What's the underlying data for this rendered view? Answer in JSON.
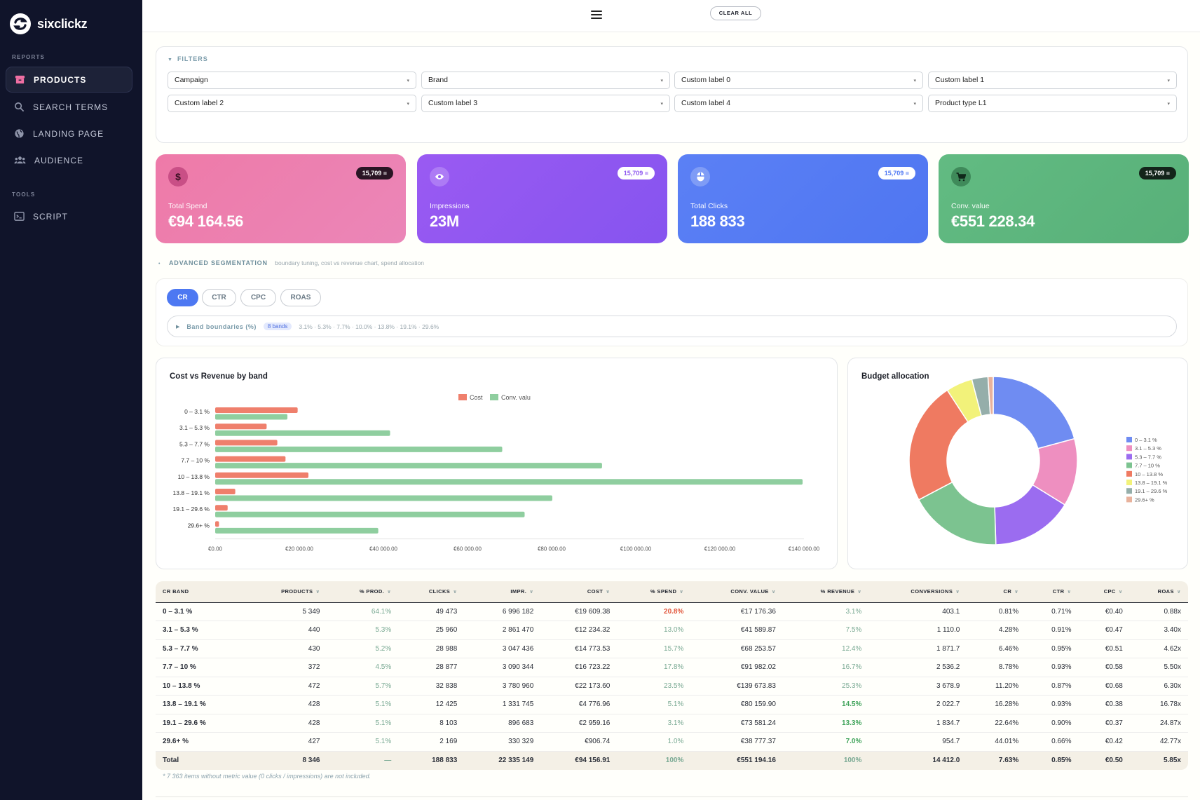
{
  "brand": {
    "name": "sixclickz"
  },
  "sidebar": {
    "sections": [
      {
        "label": "REPORTS",
        "items": [
          {
            "label": "PRODUCTS",
            "icon": "archive-icon",
            "active": true
          },
          {
            "label": "SEARCH TERMS",
            "icon": "search-icon"
          },
          {
            "label": "LANDING PAGE",
            "icon": "globe-icon"
          },
          {
            "label": "AUDIENCE",
            "icon": "people-icon"
          }
        ]
      },
      {
        "label": "TOOLS",
        "items": [
          {
            "label": "SCRIPT",
            "icon": "terminal-icon"
          }
        ]
      }
    ]
  },
  "topbar": {
    "clear_label": "CLEAR ALL"
  },
  "filters": {
    "title": "FILTERS",
    "selects": [
      "Campaign",
      "Brand",
      "Custom label 0",
      "Custom label 1",
      "Custom label 2",
      "Custom label 3",
      "Custom label 4",
      "Product type L1"
    ]
  },
  "kpis": [
    {
      "label": "Total Spend",
      "value": "€94 164.56",
      "badge": "15,709",
      "icon": "dollar-icon",
      "color": "#ec7bae"
    },
    {
      "label": "Impressions",
      "value": "23M",
      "badge": "15,709",
      "icon": "eye-icon",
      "color": "#8e57f0"
    },
    {
      "label": "Total Clicks",
      "value": "188 833",
      "badge": "15,709",
      "icon": "mouse-icon",
      "color": "#4f78f3"
    },
    {
      "label": "Conv. value",
      "value": "€551 228.34",
      "badge": "15,709",
      "icon": "cart-icon",
      "color": "#5fb87e"
    }
  ],
  "segmentation": {
    "title": "ADVANCED SEGMENTATION",
    "subtitle": "boundary tuning, cost vs revenue chart, spend allocation",
    "metric_tabs": [
      "CR",
      "CTR",
      "CPC",
      "ROAS"
    ],
    "active_tab": "CR",
    "boundaries_label": "Band boundaries (%)",
    "bands_badge": "8 bands",
    "boundaries_values": "3.1% · 5.3% · 7.7% · 10.0% · 13.8% · 19.1% · 29.6%"
  },
  "cost_chart_title": "Cost vs Revenue by band",
  "budget_chart_title": "Budget allocation",
  "colors": {
    "cost": "#ef7f6c",
    "conv": "#8fce9f",
    "bands": [
      "#6f8cf2",
      "#ee8fc0",
      "#9b6cf0",
      "#7cc390",
      "#ef7a61",
      "#f2f27a",
      "#95aeaa",
      "#e8b29c"
    ]
  },
  "chart_data": [
    {
      "type": "bar",
      "orientation": "horizontal",
      "title": "Cost vs Revenue by band",
      "categories": [
        "0 – 3.1 %",
        "3.1 – 5.3 %",
        "5.3 – 7.7 %",
        "7.7 – 10 %",
        "10 – 13.8 %",
        "13.8 – 19.1 %",
        "19.1 – 29.6 %",
        "29.6+ %"
      ],
      "series": [
        {
          "name": "Cost",
          "values": [
            19609.38,
            12234.32,
            14773.53,
            16723.22,
            22173.6,
            4776.96,
            2959.16,
            906.74
          ]
        },
        {
          "name": "Conv. valu",
          "values": [
            17176.36,
            41589.87,
            68253.57,
            91982.02,
            139673.83,
            80159.9,
            73581.24,
            38777.37
          ]
        }
      ],
      "xlim": [
        0,
        140000
      ],
      "xticks": [
        "€0.00",
        "€20 000.00",
        "€40 000.00",
        "€60 000.00",
        "€80 000.00",
        "€100 000.00",
        "€120 000.00",
        "€140 000.00"
      ],
      "legend": "top-center"
    },
    {
      "type": "pie",
      "variant": "donut",
      "title": "Budget allocation",
      "labels": [
        "0 – 3.1 %",
        "3.1 – 5.3 %",
        "5.3 – 7.7 %",
        "7.7 – 10 %",
        "10 – 13.8 %",
        "13.8 – 19.1 %",
        "19.1 – 29.6 %",
        "29.6+ %"
      ],
      "values": [
        20.8,
        13.0,
        15.7,
        17.8,
        23.5,
        5.1,
        3.1,
        1.0
      ],
      "legend": "right"
    }
  ],
  "table": {
    "columns": [
      "CR BAND",
      "PRODUCTS",
      "% PROD.",
      "CLICKS",
      "IMPR.",
      "COST",
      "% SPEND",
      "CONV. VALUE",
      "% REVENUE",
      "CONVERSIONS",
      "CR",
      "CTR",
      "CPC",
      "ROAS"
    ],
    "rows": [
      [
        "0 – 3.1 %",
        "5 349",
        "64.1%",
        "49 473",
        "6 996 182",
        "€19 609.38",
        "20.8%",
        "€17 176.36",
        "3.1%",
        "403.1",
        "0.81%",
        "0.71%",
        "€0.40",
        "0.88x"
      ],
      [
        "3.1 – 5.3 %",
        "440",
        "5.3%",
        "25 960",
        "2 861 470",
        "€12 234.32",
        "13.0%",
        "€41 589.87",
        "7.5%",
        "1 110.0",
        "4.28%",
        "0.91%",
        "€0.47",
        "3.40x"
      ],
      [
        "5.3 – 7.7 %",
        "430",
        "5.2%",
        "28 988",
        "3 047 436",
        "€14 773.53",
        "15.7%",
        "€68 253.57",
        "12.4%",
        "1 871.7",
        "6.46%",
        "0.95%",
        "€0.51",
        "4.62x"
      ],
      [
        "7.7 – 10 %",
        "372",
        "4.5%",
        "28 877",
        "3 090 344",
        "€16 723.22",
        "17.8%",
        "€91 982.02",
        "16.7%",
        "2 536.2",
        "8.78%",
        "0.93%",
        "€0.58",
        "5.50x"
      ],
      [
        "10 – 13.8 %",
        "472",
        "5.7%",
        "32 838",
        "3 780 960",
        "€22 173.60",
        "23.5%",
        "€139 673.83",
        "25.3%",
        "3 678.9",
        "11.20%",
        "0.87%",
        "€0.68",
        "6.30x"
      ],
      [
        "13.8 – 19.1 %",
        "428",
        "5.1%",
        "12 425",
        "1 331 745",
        "€4 776.96",
        "5.1%",
        "€80 159.90",
        "14.5%",
        "2 022.7",
        "16.28%",
        "0.93%",
        "€0.38",
        "16.78x"
      ],
      [
        "19.1 – 29.6 %",
        "428",
        "5.1%",
        "8 103",
        "896 683",
        "€2 959.16",
        "3.1%",
        "€73 581.24",
        "13.3%",
        "1 834.7",
        "22.64%",
        "0.90%",
        "€0.37",
        "24.87x"
      ],
      [
        "29.6+ %",
        "427",
        "5.1%",
        "2 169",
        "330 329",
        "€906.74",
        "1.0%",
        "€38 777.37",
        "7.0%",
        "954.7",
        "44.01%",
        "0.66%",
        "€0.42",
        "42.77x"
      ]
    ],
    "total": [
      "Total",
      "8 346",
      "—",
      "188 833",
      "22 335 149",
      "€94 156.91",
      "100%",
      "€551 194.16",
      "100%",
      "14 412.0",
      "7.63%",
      "0.85%",
      "€0.50",
      "5.85x"
    ],
    "highlight_spend": [
      0
    ],
    "highlight_revenue": [
      5,
      6,
      7
    ]
  },
  "note": "* 7 363 items without metric value (0 clicks / impressions) are not included."
}
